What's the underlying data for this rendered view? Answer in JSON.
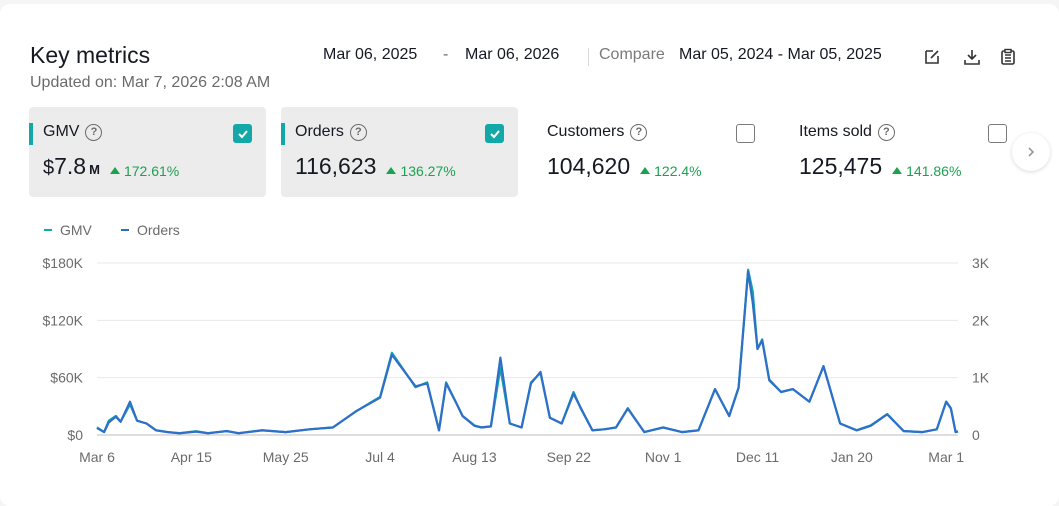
{
  "header": {
    "title": "Key metrics",
    "updated": "Updated on: Mar 7, 2026 2:08 AM",
    "date_start": "Mar 06, 2025",
    "date_sep": "-",
    "date_end": "Mar 06, 2026",
    "compare_label": "Compare",
    "compare_range": "Mar 05, 2024 - Mar 05, 2025",
    "icons": [
      "edit-icon",
      "download-icon",
      "clipboard-icon"
    ]
  },
  "metrics": [
    {
      "label": "GMV",
      "prefix": "$",
      "value": "7.8",
      "unit": "M",
      "change": "172.61%",
      "checked": true
    },
    {
      "label": "Orders",
      "value": "116,623",
      "change": "136.27%",
      "checked": true
    },
    {
      "label": "Customers",
      "value": "104,620",
      "change": "122.4%",
      "checked": false
    },
    {
      "label": "Items sold",
      "value": "125,475",
      "change": "141.86%",
      "checked": false
    }
  ],
  "colors": {
    "gmv": "#13a8a8",
    "orders": "#2f6fc9",
    "positive": "#1aa251"
  },
  "chart_data": {
    "type": "line",
    "x_ticks": [
      "Mar 6",
      "Apr 15",
      "May 25",
      "Jul 4",
      "Aug 13",
      "Sep 22",
      "Nov 1",
      "Dec 11",
      "Jan 20",
      "Mar 1"
    ],
    "y_left_ticks": [
      "$0",
      "$60K",
      "$120K",
      "$180K"
    ],
    "y_right_ticks": [
      "0",
      "1K",
      "2K",
      "3K"
    ],
    "y_left_lim": [
      0,
      180000
    ],
    "y_right_lim": [
      0,
      3000
    ],
    "legend": [
      "GMV",
      "Orders"
    ],
    "x_days": [
      0,
      3,
      5,
      8,
      10,
      14,
      17,
      21,
      25,
      30,
      35,
      42,
      47,
      55,
      60,
      70,
      80,
      90,
      100,
      110,
      120,
      125,
      135,
      140,
      145,
      148,
      152,
      155,
      160,
      163,
      167,
      171,
      175,
      180,
      184,
      188,
      192,
      197,
      202,
      205,
      210,
      215,
      220,
      225,
      232,
      240,
      248,
      255,
      262,
      268,
      272,
      276,
      278,
      280,
      282,
      285,
      290,
      295,
      302,
      308,
      315,
      322,
      328,
      335,
      342,
      350,
      356,
      360,
      362,
      364,
      365
    ],
    "series": [
      {
        "name": "GMV",
        "axis": "left",
        "values": [
          8000,
          3000,
          15000,
          20000,
          14000,
          32000,
          15000,
          12000,
          5000,
          3000,
          2000,
          4000,
          2000,
          4000,
          2000,
          5000,
          3000,
          6000,
          8000,
          25000,
          40000,
          86000,
          50000,
          55000,
          5000,
          55000,
          35000,
          20000,
          10000,
          8000,
          9000,
          70000,
          12000,
          8000,
          55000,
          65000,
          18000,
          12000,
          45000,
          28000,
          5000,
          6000,
          8000,
          28000,
          3000,
          8000,
          3000,
          5000,
          48000,
          20000,
          50000,
          173000,
          150000,
          90000,
          100000,
          58000,
          45000,
          48000,
          35000,
          72000,
          12000,
          5000,
          10000,
          22000,
          4000,
          3000,
          6000,
          35000,
          28000,
          3000,
          4000
        ]
      },
      {
        "name": "Orders",
        "axis": "right",
        "values": [
          120,
          50,
          220,
          320,
          230,
          580,
          250,
          200,
          80,
          50,
          30,
          60,
          30,
          70,
          30,
          80,
          50,
          100,
          130,
          420,
          650,
          1400,
          850,
          900,
          80,
          900,
          580,
          330,
          160,
          130,
          150,
          1350,
          200,
          130,
          900,
          1100,
          300,
          200,
          720,
          480,
          80,
          100,
          130,
          460,
          50,
          130,
          50,
          80,
          800,
          330,
          820,
          2850,
          2300,
          1500,
          1650,
          950,
          750,
          800,
          580,
          1200,
          200,
          80,
          160,
          360,
          70,
          50,
          100,
          580,
          460,
          50,
          60
        ]
      }
    ]
  }
}
